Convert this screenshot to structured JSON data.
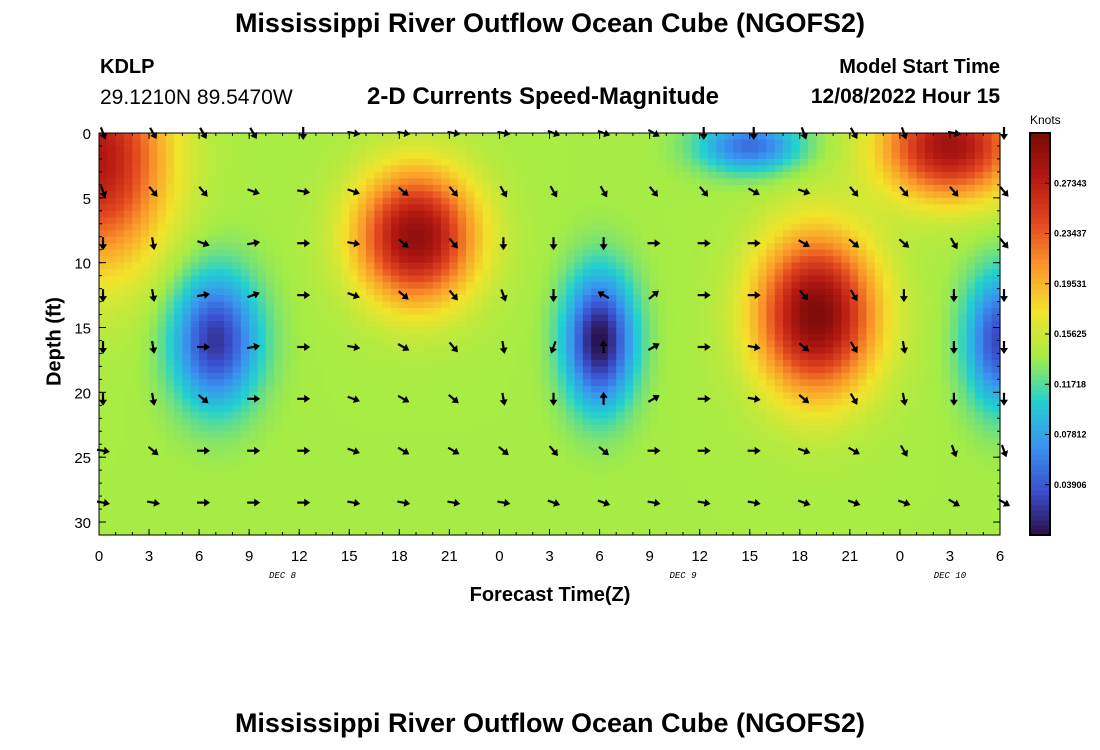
{
  "header": {
    "title": "Mississippi River Outflow Ocean Cube (NGOFS2)",
    "station": "KDLP",
    "coordinates": "29.1210N  89.5470W",
    "product": "2-D Currents Speed-Magnitude",
    "model_start_label": "Model Start Time",
    "model_start_value": "12/08/2022 Hour 15"
  },
  "footer": {
    "title": "Mississippi River Outflow Ocean Cube (NGOFS2)"
  },
  "chart_data": {
    "type": "heatmap",
    "xlabel": "Forecast Time(Z)",
    "ylabel": "Depth (ft)",
    "x_ticks": [
      "0",
      "3",
      "6",
      "9",
      "12",
      "15",
      "18",
      "21",
      "0",
      "3",
      "6",
      "9",
      "12",
      "15",
      "18",
      "21",
      "0",
      "3",
      "6"
    ],
    "x_hours": [
      0,
      3,
      6,
      9,
      12,
      15,
      18,
      21,
      24,
      27,
      30,
      33,
      36,
      39,
      42,
      45,
      48,
      51,
      54
    ],
    "date_labels": [
      {
        "label": "DEC 8",
        "hour": 11
      },
      {
        "label": "DEC 9",
        "hour": 35
      },
      {
        "label": "DEC 10",
        "hour": 51
      }
    ],
    "y_ticks": [
      0,
      5,
      10,
      15,
      20,
      25,
      30
    ],
    "xlim": [
      0,
      54
    ],
    "ylim": [
      0,
      31
    ],
    "y_inverted": true,
    "colorbar": {
      "title": "Knots",
      "ticks": [
        "0.03906",
        "0.07812",
        "0.11718",
        "0.15625",
        "0.19531",
        "0.23437",
        "0.27343"
      ],
      "range": [
        0,
        0.3125
      ],
      "colors": [
        "#2a0f4a",
        "#3b4fcf",
        "#3a93f0",
        "#23d0d0",
        "#a5ec45",
        "#f2e42b",
        "#fb9a2a",
        "#e2481f",
        "#b51912",
        "#7a0a0a"
      ]
    },
    "speed_centers": [
      {
        "hour": 0,
        "depth": 2,
        "speed": 0.28,
        "sx": 4,
        "sy": 8
      },
      {
        "hour": 7,
        "depth": 16,
        "speed": 0.02,
        "sx": 2.5,
        "sy": 5
      },
      {
        "hour": 19,
        "depth": 8,
        "speed": 0.3,
        "sx": 3.5,
        "sy": 5
      },
      {
        "hour": 30,
        "depth": 16,
        "speed": 0.0,
        "sx": 2,
        "sy": 5
      },
      {
        "hour": 43,
        "depth": 14,
        "speed": 0.31,
        "sx": 3.5,
        "sy": 6
      },
      {
        "hour": 54,
        "depth": 16,
        "speed": 0.03,
        "sx": 2,
        "sy": 5
      },
      {
        "hour": 51,
        "depth": 1,
        "speed": 0.29,
        "sx": 4,
        "sy": 4
      },
      {
        "hour": 39,
        "depth": 1,
        "speed": 0.05,
        "sx": 3,
        "sy": 2
      }
    ],
    "background_speed": 0.14,
    "vectors": {
      "hours": [
        0,
        3,
        6,
        9,
        12,
        15,
        18,
        21,
        24,
        27,
        30,
        33,
        36,
        39,
        42,
        45,
        48,
        51,
        54
      ],
      "depths": [
        0,
        4.5,
        8.5,
        12.5,
        16.5,
        20.5,
        24.5,
        28.5
      ],
      "direction_deg": [
        [
          160,
          150,
          150,
          150,
          180,
          100,
          100,
          100,
          100,
          110,
          110,
          120,
          180,
          180,
          160,
          150,
          160,
          100,
          180
        ],
        [
          160,
          140,
          140,
          110,
          100,
          110,
          130,
          140,
          150,
          150,
          150,
          140,
          140,
          120,
          110,
          140,
          140,
          140,
          140
        ],
        [
          180,
          170,
          110,
          80,
          90,
          100,
          130,
          140,
          180,
          180,
          180,
          90,
          90,
          90,
          120,
          130,
          130,
          150,
          140
        ],
        [
          180,
          170,
          80,
          70,
          90,
          110,
          130,
          140,
          160,
          180,
          300,
          50,
          90,
          90,
          140,
          150,
          180,
          180,
          180
        ],
        [
          180,
          170,
          90,
          80,
          90,
          100,
          120,
          140,
          170,
          200,
          0,
          60,
          90,
          100,
          130,
          150,
          170,
          180,
          180
        ],
        [
          180,
          170,
          130,
          90,
          90,
          110,
          120,
          130,
          170,
          180,
          0,
          60,
          90,
          100,
          130,
          150,
          170,
          180,
          180
        ],
        [
          100,
          130,
          90,
          90,
          90,
          110,
          120,
          120,
          130,
          140,
          130,
          90,
          90,
          90,
          110,
          120,
          150,
          160,
          160
        ],
        [
          100,
          100,
          90,
          90,
          90,
          100,
          100,
          100,
          100,
          110,
          110,
          100,
          100,
          100,
          110,
          110,
          110,
          120,
          120
        ]
      ]
    }
  }
}
